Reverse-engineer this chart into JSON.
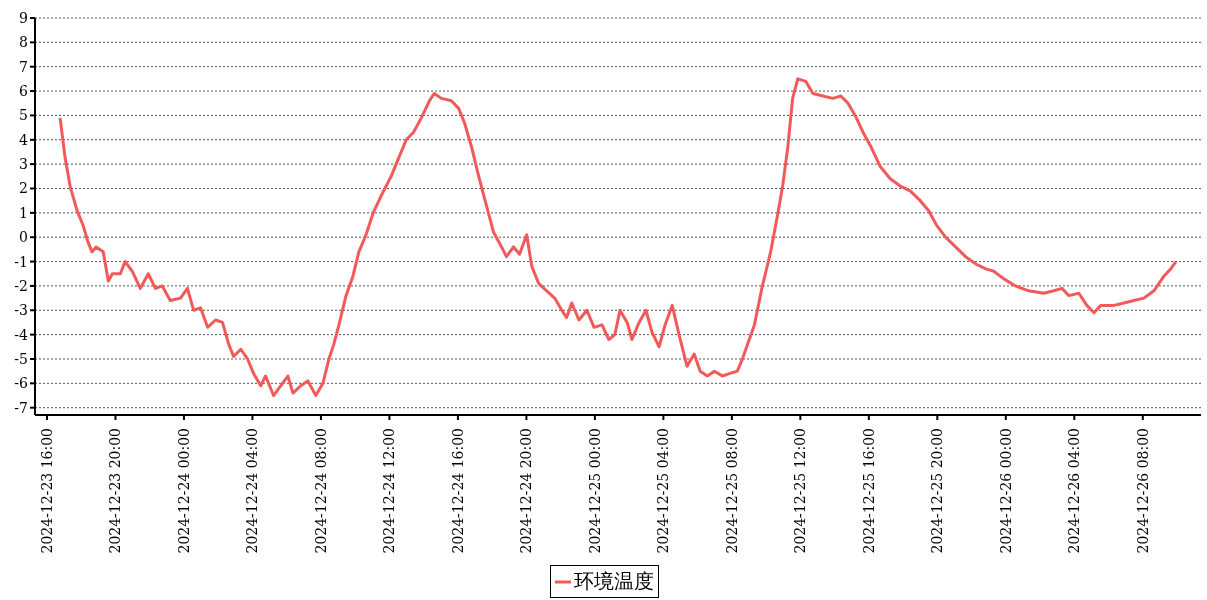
{
  "chart_data": {
    "type": "line",
    "xlim": [
      "2024-12-23T15:18",
      "2024-12-26T11:24"
    ],
    "ylim": [
      -7.3,
      9
    ],
    "xticks": [
      {
        "value": "2024-12-23T16:00",
        "label": "2024-12-23 16:00"
      },
      {
        "value": "2024-12-23T20:00",
        "label": "2024-12-23 20:00"
      },
      {
        "value": "2024-12-24T00:00",
        "label": "2024-12-24 00:00"
      },
      {
        "value": "2024-12-24T04:00",
        "label": "2024-12-24 04:00"
      },
      {
        "value": "2024-12-24T08:00",
        "label": "2024-12-24 08:00"
      },
      {
        "value": "2024-12-24T12:00",
        "label": "2024-12-24 12:00"
      },
      {
        "value": "2024-12-24T16:00",
        "label": "2024-12-24 16:00"
      },
      {
        "value": "2024-12-24T20:00",
        "label": "2024-12-24 20:00"
      },
      {
        "value": "2024-12-25T00:00",
        "label": "2024-12-25 00:00"
      },
      {
        "value": "2024-12-25T04:00",
        "label": "2024-12-25 04:00"
      },
      {
        "value": "2024-12-25T08:00",
        "label": "2024-12-25 08:00"
      },
      {
        "value": "2024-12-25T12:00",
        "label": "2024-12-25 12:00"
      },
      {
        "value": "2024-12-25T16:00",
        "label": "2024-12-25 16:00"
      },
      {
        "value": "2024-12-25T20:00",
        "label": "2024-12-25 20:00"
      },
      {
        "value": "2024-12-26T00:00",
        "label": "2024-12-26 00:00"
      },
      {
        "value": "2024-12-26T04:00",
        "label": "2024-12-26 04:00"
      },
      {
        "value": "2024-12-26T08:00",
        "label": "2024-12-26 08:00"
      }
    ],
    "yticks": [
      -7,
      -6,
      -5,
      -4,
      -3,
      -2,
      -1,
      0,
      1,
      2,
      3,
      4,
      5,
      6,
      7,
      8,
      9
    ],
    "grid": "y",
    "legend": "bottom",
    "marker": "none",
    "line_style": "solid",
    "x": [
      "2024-12-23T16:46",
      "2024-12-23T17:03",
      "2024-12-23T17:21",
      "2024-12-23T17:45",
      "2024-12-23T18:06",
      "2024-12-23T18:24",
      "2024-12-23T18:38",
      "2024-12-23T18:52",
      "2024-12-23T19:17",
      "2024-12-23T19:35",
      "2024-12-23T19:49",
      "2024-12-23T20:17",
      "2024-12-23T20:34",
      "2024-12-23T20:59",
      "2024-12-23T21:27",
      "2024-12-23T21:55",
      "2024-12-23T22:20",
      "2024-12-23T22:44",
      "2024-12-23T23:12",
      "2024-12-23T23:48",
      "2024-12-24T00:12",
      "2024-12-24T00:34",
      "2024-12-24T00:58",
      "2024-12-24T01:23",
      "2024-12-24T01:51",
      "2024-12-24T02:15",
      "2024-12-24T02:37",
      "2024-12-24T02:54",
      "2024-12-24T03:19",
      "2024-12-24T03:43",
      "2024-12-24T04:04",
      "2024-12-24T04:29",
      "2024-12-24T04:46",
      "2024-12-24T05:14",
      "2024-12-24T05:39",
      "2024-12-24T06:04",
      "2024-12-24T06:22",
      "2024-12-24T06:49",
      "2024-12-24T07:14",
      "2024-12-24T07:42",
      "2024-12-24T08:07",
      "2024-12-24T08:28",
      "2024-12-24T08:45",
      "2024-12-24T09:03",
      "2024-12-24T09:28",
      "2024-12-24T09:52",
      "2024-12-24T10:13",
      "2024-12-24T10:38",
      "2024-12-24T11:03",
      "2024-12-24T11:31",
      "2024-12-24T12:06",
      "2024-12-24T12:34",
      "2024-12-24T12:59",
      "2024-12-24T13:24",
      "2024-12-24T13:52",
      "2024-12-24T14:20",
      "2024-12-24T14:37",
      "2024-12-24T15:02",
      "2024-12-24T15:37",
      "2024-12-24T16:02",
      "2024-12-24T16:23",
      "2024-12-24T16:48",
      "2024-12-24T17:13",
      "2024-12-24T17:40",
      "2024-12-24T18:05",
      "2024-12-24T18:33",
      "2024-12-24T18:50",
      "2024-12-24T19:15",
      "2024-12-24T19:36",
      "2024-12-24T20:01",
      "2024-12-24T20:19",
      "2024-12-24T20:43",
      "2024-12-24T21:11",
      "2024-12-24T21:39",
      "2024-12-24T22:04",
      "2024-12-24T22:21",
      "2024-12-24T22:39",
      "2024-12-24T23:04",
      "2024-12-24T23:32",
      "2024-12-24T23:57",
      "2024-12-25T00:25",
      "2024-12-25T00:49",
      "2024-12-25T01:10",
      "2024-12-25T01:28",
      "2024-12-25T01:53",
      "2024-12-25T02:10",
      "2024-12-25T02:35",
      "2024-12-25T02:59",
      "2024-12-25T03:20",
      "2024-12-25T03:45",
      "2024-12-25T04:06",
      "2024-12-25T04:31",
      "2024-12-25T04:55",
      "2024-12-25T05:23",
      "2024-12-25T05:48",
      "2024-12-25T06:09",
      "2024-12-25T06:34",
      "2024-12-25T06:59",
      "2024-12-25T07:27",
      "2024-12-25T07:51",
      "2024-12-25T08:19",
      "2024-12-25T08:37",
      "2024-12-25T08:55",
      "2024-12-25T09:19",
      "2024-12-25T09:47",
      "2024-12-25T10:16",
      "2024-12-25T10:40",
      "2024-12-25T10:58",
      "2024-12-25T11:16",
      "2024-12-25T11:33",
      "2024-12-25T11:51",
      "2024-12-25T12:19",
      "2024-12-25T12:44",
      "2024-12-25T13:19",
      "2024-12-25T13:54",
      "2024-12-25T14:22",
      "2024-12-25T14:47",
      "2024-12-25T15:12",
      "2024-12-25T15:40",
      "2024-12-25T16:08",
      "2024-12-25T16:40",
      "2024-12-25T17:15",
      "2024-12-25T17:50",
      "2024-12-25T18:25",
      "2024-12-25T19:00",
      "2024-12-25T19:29",
      "2024-12-25T19:57",
      "2024-12-25T20:29",
      "2024-12-25T21:04",
      "2024-12-25T21:39",
      "2024-12-25T22:15",
      "2024-12-25T22:50",
      "2024-12-25T23:18",
      "2024-12-25T23:52",
      "2024-12-26T00:34",
      "2024-12-26T01:20",
      "2024-12-26T02:13",
      "2024-12-26T02:48",
      "2024-12-26T03:17",
      "2024-12-26T03:41",
      "2024-12-26T04:16",
      "2024-12-26T04:44",
      "2024-12-26T05:09",
      "2024-12-26T05:33",
      "2024-12-26T06:19",
      "2024-12-26T06:54",
      "2024-12-26T07:29",
      "2024-12-26T08:04",
      "2024-12-26T08:39",
      "2024-12-26T09:14",
      "2024-12-26T09:38",
      "2024-12-26T09:56"
    ],
    "series": [
      {
        "name": "环境温度",
        "color": "#f25a5a",
        "values": [
          4.9,
          3.3,
          2.1,
          1.1,
          0.5,
          -0.2,
          -0.6,
          -0.4,
          -0.6,
          -1.8,
          -1.5,
          -1.5,
          -1.0,
          -1.4,
          -2.1,
          -1.5,
          -2.1,
          -2.0,
          -2.6,
          -2.5,
          -2.1,
          -3.0,
          -2.9,
          -3.7,
          -3.4,
          -3.5,
          -4.4,
          -4.9,
          -4.6,
          -5.0,
          -5.6,
          -6.1,
          -5.7,
          -6.5,
          -6.1,
          -5.7,
          -6.4,
          -6.1,
          -5.9,
          -6.5,
          -6.0,
          -5.0,
          -4.4,
          -3.6,
          -2.4,
          -1.6,
          -0.6,
          0.1,
          1.0,
          1.7,
          2.5,
          3.3,
          4.0,
          4.3,
          4.9,
          5.6,
          5.9,
          5.7,
          5.6,
          5.3,
          4.7,
          3.7,
          2.5,
          1.3,
          0.2,
          -0.4,
          -0.8,
          -0.4,
          -0.7,
          0.1,
          -1.2,
          -1.9,
          -2.2,
          -2.5,
          -3.0,
          -3.3,
          -2.7,
          -3.4,
          -3.0,
          -3.7,
          -3.6,
          -4.2,
          -4.0,
          -3.0,
          -3.5,
          -4.2,
          -3.5,
          -3.0,
          -3.9,
          -4.5,
          -3.6,
          -2.8,
          -4.0,
          -5.3,
          -4.8,
          -5.5,
          -5.7,
          -5.5,
          -5.7,
          -5.6,
          -5.5,
          -5.0,
          -4.4,
          -3.6,
          -2.0,
          -0.6,
          0.9,
          2.1,
          3.7,
          5.7,
          6.5,
          6.4,
          5.9,
          5.8,
          5.7,
          5.8,
          5.5,
          5.0,
          4.3,
          3.7,
          2.9,
          2.4,
          2.1,
          1.9,
          1.5,
          1.1,
          0.5,
          0.0,
          -0.4,
          -0.8,
          -1.1,
          -1.3,
          -1.4,
          -1.7,
          -2.0,
          -2.2,
          -2.3,
          -2.2,
          -2.1,
          -2.4,
          -2.3,
          -2.8,
          -3.1,
          -2.8,
          -2.8,
          -2.7,
          -2.6,
          -2.5,
          -2.2,
          -1.6,
          -1.3,
          -1.0
        ]
      }
    ]
  }
}
